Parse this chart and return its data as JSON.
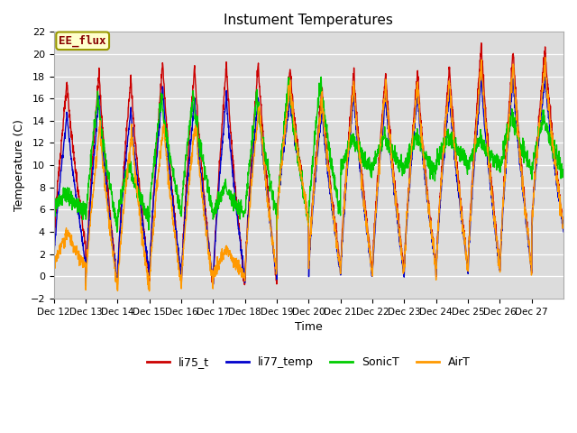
{
  "title": "Instument Temperatures",
  "xlabel": "Time",
  "ylabel": "Temperature (C)",
  "ylim": [
    -2,
    22
  ],
  "yticks": [
    -2,
    0,
    2,
    4,
    6,
    8,
    10,
    12,
    14,
    16,
    18,
    20,
    22
  ],
  "background_color": "#dcdcdc",
  "annotation_text": "EE_flux",
  "annotation_facecolor": "#ffffcc",
  "annotation_edgecolor": "#999900",
  "series_colors": {
    "li75_t": "#cc0000",
    "li77_temp": "#0000cc",
    "SonicT": "#00cc00",
    "AirT": "#ff9900"
  },
  "xtick_labels": [
    "Dec 12",
    "Dec 13",
    "Dec 14",
    "Dec 15",
    "Dec 16",
    "Dec 17",
    "Dec 18",
    "Dec 19",
    "Dec 20",
    "Dec 21",
    "Dec 22",
    "Dec 23",
    "Dec 24",
    "Dec 25",
    "Dec 26",
    "Dec 27"
  ],
  "n_days": 16,
  "points_per_day": 144,
  "li75_peaks": [
    17.4,
    18.5,
    17.9,
    19.4,
    19.1,
    19.2,
    19.3,
    18.6,
    17.1,
    18.5,
    18.4,
    18.5,
    18.9,
    21.0,
    20.4,
    20.5
  ],
  "li75_troughs": [
    2.7,
    -0.8,
    -0.2,
    -0.5,
    -0.9,
    -1.0,
    -0.5,
    4.8,
    0.8,
    0.5,
    0.5,
    0.5,
    0.7,
    0.8,
    0.5,
    4.5
  ],
  "li77_peaks": [
    14.7,
    16.3,
    15.2,
    17.1,
    16.1,
    16.3,
    16.2,
    15.9,
    15.2,
    16.4,
    16.4,
    16.5,
    16.6,
    18.0,
    18.1,
    17.8
  ],
  "li77_troughs": [
    1.3,
    -0.8,
    0.3,
    0.2,
    -0.5,
    -0.5,
    0.0,
    5.1,
    0.2,
    0.0,
    0.0,
    0.5,
    0.5,
    0.5,
    0.5,
    4.2
  ],
  "sonic_peaks": [
    7.5,
    16.3,
    10.1,
    16.0,
    16.5,
    8.0,
    16.1,
    17.7,
    17.7,
    12.5,
    12.6,
    12.5,
    12.7,
    12.5,
    14.5,
    14.5
  ],
  "sonic_troughs": [
    5.9,
    4.5,
    5.2,
    5.6,
    5.5,
    5.5,
    5.5,
    4.7,
    5.5,
    9.5,
    9.6,
    9.5,
    10.0,
    10.0,
    9.5,
    9.2
  ],
  "air_peaks": [
    4.0,
    13.6,
    13.2,
    14.0,
    14.0,
    2.5,
    15.5,
    10.3,
    7.9,
    5.7,
    5.5,
    5.5,
    5.5,
    5.5,
    5.5,
    5.0
  ],
  "air_troughs": [
    0.8,
    -1.0,
    -1.2,
    -0.8,
    -0.8,
    0.0,
    0.0,
    3.5,
    4.7,
    3.2,
    0.5,
    0.5,
    -0.2,
    -0.2,
    3.5,
    3.5
  ],
  "peak_phase": 0.42,
  "trough_phase": 0.0
}
